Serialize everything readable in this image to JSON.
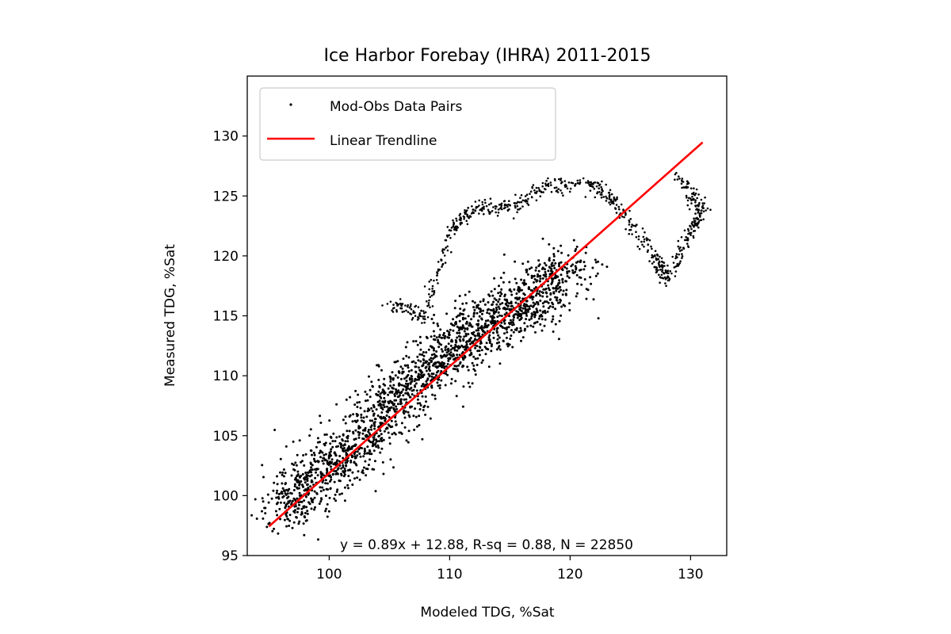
{
  "chart_data": {
    "type": "scatter",
    "title": "Ice Harbor Forebay (IHRA) 2011-2015",
    "xlabel": "Modeled TDG, %Sat",
    "ylabel": "Measured TDG, %Sat",
    "xlim": [
      93.2,
      133
    ],
    "ylim": [
      95,
      135
    ],
    "xticks": [
      100,
      110,
      120,
      130
    ],
    "yticks": [
      95,
      100,
      105,
      110,
      115,
      120,
      125,
      130
    ],
    "grid": false,
    "legend": {
      "placement": "top-left",
      "entries": [
        {
          "label": "Mod-Obs Data Pairs",
          "marker": "point",
          "color": "#000000"
        },
        {
          "label": "Linear Trendline",
          "marker": "line",
          "color": "#ff0000"
        }
      ]
    },
    "annotation": "y = 0.89x + 12.88, R-sq = 0.88, N = 22850",
    "trendline": {
      "slope": 0.89,
      "intercept": 12.88,
      "x_range": [
        95,
        131
      ]
    },
    "series": [
      {
        "name": "Mod-Obs Data Pairs",
        "color": "#000000",
        "points_summary": {
          "count": 22850,
          "core": [
            [
              96,
              98.5
            ],
            [
              98,
              100.5
            ],
            [
              100,
              102.5
            ],
            [
              102,
              103.8
            ],
            [
              104,
              106.5
            ],
            [
              106,
              108.5
            ],
            [
              108,
              110.5
            ],
            [
              110,
              112
            ],
            [
              112,
              113.5
            ],
            [
              114,
              114.8
            ],
            [
              116,
              116
            ],
            [
              118,
              117.5
            ],
            [
              120,
              119
            ]
          ],
          "excursions": [
            [
              105,
              116
            ],
            [
              108,
              115
            ],
            [
              110,
              122
            ],
            [
              112,
              124
            ],
            [
              115,
              124
            ],
            [
              118,
              125.8
            ],
            [
              122,
              126
            ],
            [
              124,
              124
            ],
            [
              127,
              120
            ],
            [
              128,
              118
            ],
            [
              130,
              122
            ],
            [
              131,
              124
            ],
            [
              129,
              126.5
            ]
          ]
        }
      },
      {
        "name": "Linear Trendline",
        "color": "#ff0000",
        "x": [
          95,
          131
        ],
        "y": [
          97.43,
          129.47
        ]
      }
    ]
  }
}
